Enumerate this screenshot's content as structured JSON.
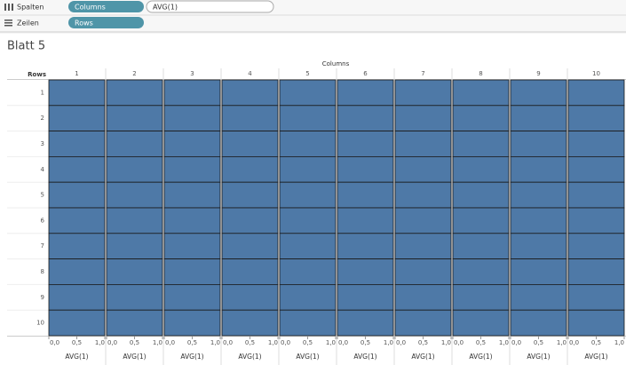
{
  "shelves": {
    "columns": {
      "label": "Spalten",
      "pills": [
        "Columns",
        "AVG(1)"
      ]
    },
    "rows": {
      "label": "Zeilen",
      "pills": [
        "Rows"
      ]
    }
  },
  "chart_data": {
    "type": "bar",
    "title": "Blatt 5",
    "columns_label": "Columns",
    "rows_label": "Rows",
    "columns": [
      "1",
      "2",
      "3",
      "4",
      "5",
      "6",
      "7",
      "8",
      "9",
      "10"
    ],
    "rows": [
      "1",
      "2",
      "3",
      "4",
      "5",
      "6",
      "7",
      "8",
      "9",
      "10"
    ],
    "values": [
      [
        1,
        1,
        1,
        1,
        1,
        1,
        1,
        1,
        1,
        1
      ],
      [
        1,
        1,
        1,
        1,
        1,
        1,
        1,
        1,
        1,
        1
      ],
      [
        1,
        1,
        1,
        1,
        1,
        1,
        1,
        1,
        1,
        1
      ],
      [
        1,
        1,
        1,
        1,
        1,
        1,
        1,
        1,
        1,
        1
      ],
      [
        1,
        1,
        1,
        1,
        1,
        1,
        1,
        1,
        1,
        1
      ],
      [
        1,
        1,
        1,
        1,
        1,
        1,
        1,
        1,
        1,
        1
      ],
      [
        1,
        1,
        1,
        1,
        1,
        1,
        1,
        1,
        1,
        1
      ],
      [
        1,
        1,
        1,
        1,
        1,
        1,
        1,
        1,
        1,
        1
      ],
      [
        1,
        1,
        1,
        1,
        1,
        1,
        1,
        1,
        1,
        1
      ],
      [
        1,
        1,
        1,
        1,
        1,
        1,
        1,
        1,
        1,
        1
      ]
    ],
    "xlabel": "AVG(1)",
    "xlim": [
      0,
      1
    ],
    "xticks": [
      {
        "value": 0,
        "label": "0,0"
      },
      {
        "value": 0.5,
        "label": "0,5"
      },
      {
        "value": 1,
        "label": "1,0"
      }
    ],
    "color": "#4e79a7"
  }
}
